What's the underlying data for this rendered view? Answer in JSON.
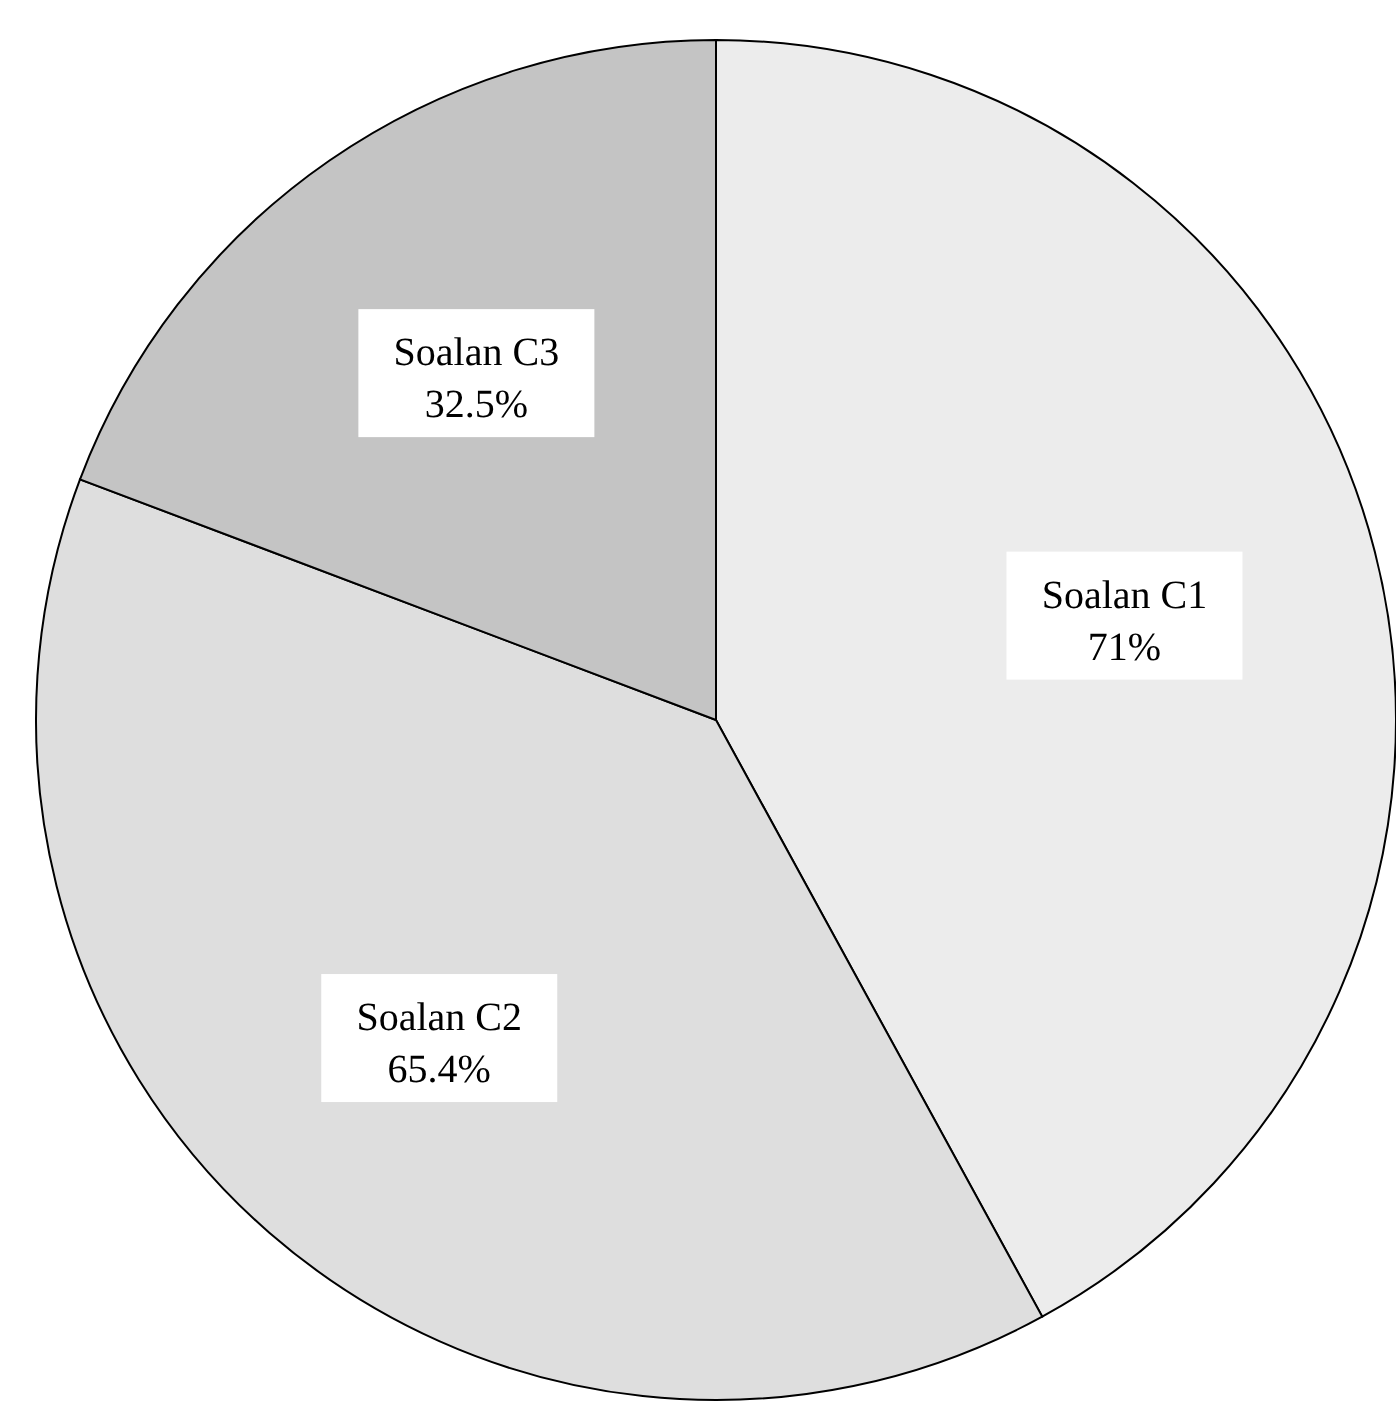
{
  "chart_data": {
    "type": "pie",
    "categories": [
      "Soalan C1",
      "Soalan C2",
      "Soalan C3"
    ],
    "values": [
      71,
      65.4,
      32.5
    ],
    "value_labels": [
      "71%",
      "65.4%",
      "32.5%"
    ],
    "colors": [
      "#ececec",
      "#dedede",
      "#c4c4c4"
    ]
  }
}
